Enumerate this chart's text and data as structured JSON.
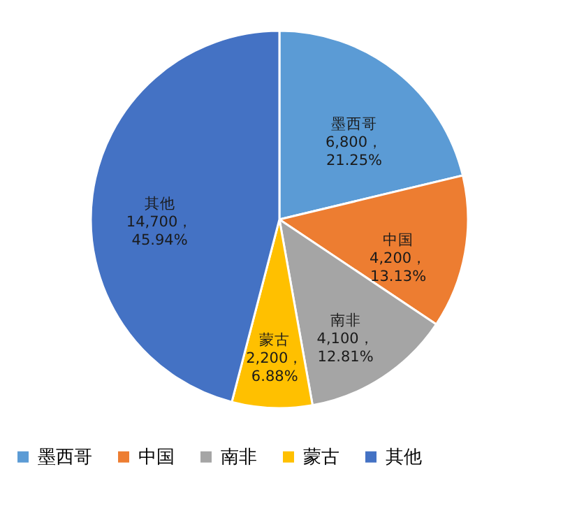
{
  "chart_data": {
    "type": "pie",
    "categories": [
      "墨西哥",
      "中国",
      "南非",
      "蒙古",
      "其他"
    ],
    "values": [
      6800,
      4200,
      4100,
      2200,
      14700
    ],
    "value_labels": [
      "6,800，\n21.25%",
      "4,200，\n13.13%",
      "4,100，\n12.81%",
      "2,200，\n6.88%",
      "14,700，\n45.94%"
    ],
    "colors": [
      "#5b9bd5",
      "#ed7d31",
      "#a5a5a5",
      "#ffc000",
      "#4472c4"
    ],
    "legend": "bottom"
  }
}
